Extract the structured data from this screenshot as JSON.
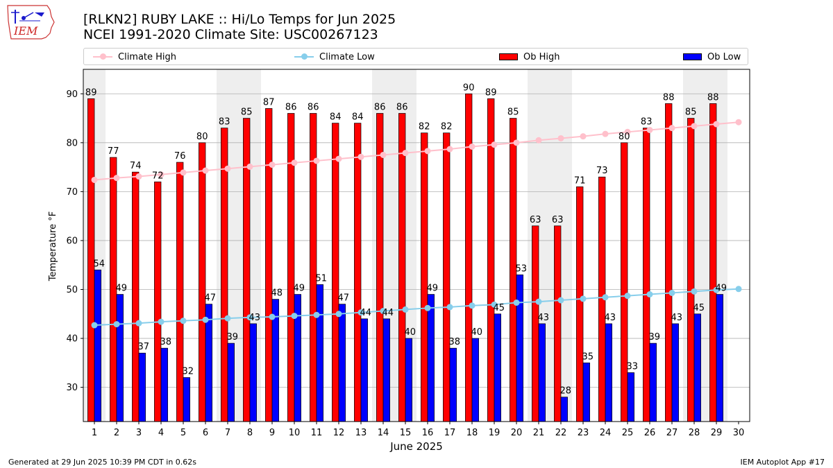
{
  "header": {
    "title_line1": "[RLKN2] RUBY LAKE :: Hi/Lo Temps for Jun 2025",
    "title_line2": "NCEI 1991-2020 Climate Site: USC00267123",
    "logo_text": "IEM"
  },
  "legend": {
    "climate_high": "Climate High",
    "climate_low": "Climate Low",
    "ob_high": "Ob High",
    "ob_low": "Ob Low"
  },
  "footer": {
    "generated": "Generated at 29 Jun 2025 10:39 PM CDT in 0.62s",
    "app": "IEM Autoplot App #17"
  },
  "colors": {
    "ob_high": "#ff0000",
    "ob_low": "#0000ff",
    "climate_high": "#ffc0cb",
    "climate_low": "#87ceeb",
    "weekend_band": "#eeeeee",
    "grid": "#b0b0b0"
  },
  "chart_data": {
    "type": "bar",
    "title": "[RLKN2] RUBY LAKE :: Hi/Lo Temps for Jun 2025",
    "xlabel": "June 2025",
    "ylabel": "Temperature °F",
    "ylim": [
      23,
      95
    ],
    "xlim": [
      0.5,
      30.5
    ],
    "yticks": [
      30,
      40,
      50,
      60,
      70,
      80,
      90
    ],
    "grid": "y",
    "legend_position": "top",
    "days": [
      1,
      2,
      3,
      4,
      5,
      6,
      7,
      8,
      9,
      10,
      11,
      12,
      13,
      14,
      15,
      16,
      17,
      18,
      19,
      20,
      21,
      22,
      23,
      24,
      25,
      26,
      27,
      28,
      29,
      30
    ],
    "weekend_days": [
      1,
      7,
      8,
      14,
      15,
      21,
      22,
      28,
      29
    ],
    "series": [
      {
        "name": "Ob High",
        "kind": "bar",
        "days": [
          1,
          2,
          3,
          4,
          5,
          6,
          7,
          8,
          9,
          10,
          11,
          12,
          13,
          14,
          15,
          16,
          17,
          18,
          19,
          20,
          21,
          22,
          23,
          24,
          25,
          26,
          27,
          28,
          29
        ],
        "values": [
          89,
          77,
          74,
          72,
          76,
          80,
          83,
          85,
          87,
          86,
          86,
          84,
          84,
          86,
          86,
          82,
          82,
          90,
          89,
          85,
          63,
          63,
          71,
          73,
          80,
          83,
          88,
          85,
          88
        ]
      },
      {
        "name": "Ob Low",
        "kind": "bar",
        "days": [
          1,
          2,
          3,
          4,
          5,
          6,
          7,
          8,
          9,
          10,
          11,
          12,
          13,
          14,
          15,
          16,
          17,
          18,
          19,
          20,
          21,
          22,
          23,
          24,
          25,
          26,
          27,
          28,
          29
        ],
        "values": [
          54,
          49,
          37,
          38,
          32,
          47,
          39,
          43,
          48,
          49,
          51,
          47,
          44,
          44,
          40,
          49,
          38,
          40,
          45,
          53,
          43,
          28,
          35,
          43,
          33,
          39,
          43,
          45,
          49
        ]
      },
      {
        "name": "Climate High",
        "kind": "line",
        "days": [
          1,
          2,
          3,
          4,
          5,
          6,
          7,
          8,
          9,
          10,
          11,
          12,
          13,
          14,
          15,
          16,
          17,
          18,
          19,
          20,
          21,
          22,
          23,
          24,
          25,
          26,
          27,
          28,
          29,
          30
        ],
        "values": [
          72.4,
          72.8,
          73.1,
          73.5,
          73.9,
          74.3,
          74.7,
          75.1,
          75.5,
          75.9,
          76.3,
          76.7,
          77.1,
          77.5,
          77.9,
          78.3,
          78.7,
          79.2,
          79.6,
          80.0,
          80.5,
          80.9,
          81.3,
          81.8,
          82.2,
          82.6,
          83.0,
          83.4,
          83.8,
          84.2
        ]
      },
      {
        "name": "Climate Low",
        "kind": "line",
        "days": [
          1,
          2,
          3,
          4,
          5,
          6,
          7,
          8,
          9,
          10,
          11,
          12,
          13,
          14,
          15,
          16,
          17,
          18,
          19,
          20,
          21,
          22,
          23,
          24,
          25,
          26,
          27,
          28,
          29,
          30
        ],
        "values": [
          42.7,
          42.9,
          43.1,
          43.4,
          43.6,
          43.8,
          44.1,
          44.3,
          44.4,
          44.6,
          44.8,
          45.0,
          45.3,
          45.6,
          45.9,
          46.2,
          46.4,
          46.7,
          46.9,
          47.3,
          47.5,
          47.8,
          48.1,
          48.4,
          48.7,
          49.0,
          49.3,
          49.6,
          49.9,
          50.1
        ]
      }
    ]
  }
}
